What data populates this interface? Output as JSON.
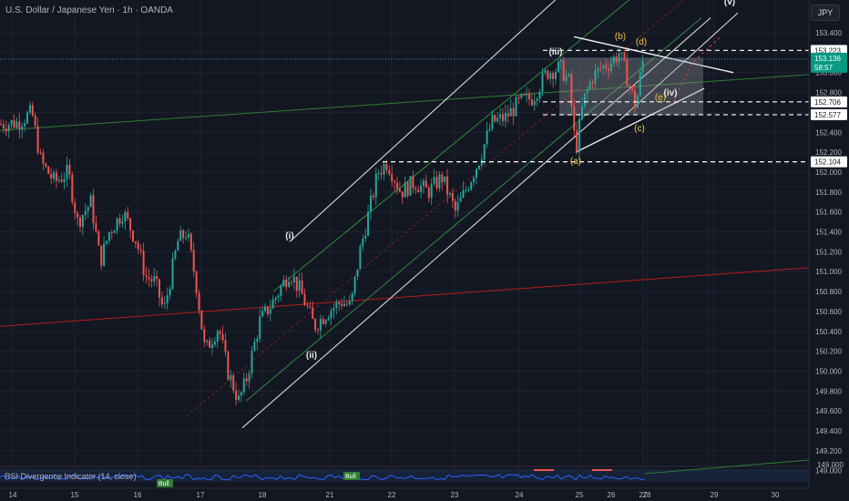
{
  "header": {
    "title": "U.S. Dollar / Japanese Yen · 1h · OANDA",
    "currency": "JPY"
  },
  "rsi": {
    "label": "RSI Divergence Indicator (14, close)",
    "bull_badges": [
      "Bull",
      "Bull"
    ]
  },
  "colors": {
    "background": "#131722",
    "grid": "#1f2330",
    "up": "#26a69a",
    "down": "#ef5350",
    "green_line": "#2e7d32",
    "red_line": "#b71c1c",
    "wave_label": "#e6e6e6",
    "abc_label": "#f5c542",
    "rsi_line": "#2962ff"
  },
  "chart_data": {
    "type": "candlestick",
    "ylim": [
      149.2,
      153.5
    ],
    "y_ticks": [
      "153.400",
      "153.200",
      "153.000",
      "152.800",
      "152.600",
      "152.400",
      "152.200",
      "152.000",
      "151.800",
      "151.600",
      "151.400",
      "151.200",
      "151.000",
      "150.800",
      "150.600",
      "150.400",
      "150.200",
      "150.000",
      "149.800",
      "149.600",
      "149.400",
      "149.200",
      "149.000"
    ],
    "x_ticks": [
      "14",
      "15",
      "16",
      "17",
      "18",
      "21",
      "22",
      "23",
      "24",
      "25",
      "26",
      "27",
      "28",
      "29",
      "30"
    ],
    "current_price": {
      "value": "153.136",
      "countdown": "58:57"
    },
    "levels": [
      {
        "value": 153.223,
        "label": "153.223"
      },
      {
        "value": 152.706,
        "label": "152.706"
      },
      {
        "value": 152.577,
        "label": "152.577"
      },
      {
        "value": 152.104,
        "label": "152.104"
      }
    ],
    "wave_labels": [
      {
        "text": "(i)",
        "x": 17.8,
        "y": 151.35
      },
      {
        "text": "(ii)",
        "x": 18.35,
        "y": 150.05
      },
      {
        "text": "(iii)",
        "x": 25.7,
        "y": 153.12
      },
      {
        "text": "(iv)",
        "x": 27.35,
        "y": 152.75
      },
      {
        "text": "(v)",
        "x": 28.45,
        "y": 153.53
      }
    ],
    "abc_labels": [
      {
        "text": "(a)",
        "x": 25.75,
        "y": 152.09
      },
      {
        "text": "(b)",
        "x": 26.55,
        "y": 153.33
      },
      {
        "text": "(c)",
        "x": 27.05,
        "y": 152.42
      },
      {
        "text": "(d)",
        "x": 26.85,
        "y": 153.28
      },
      {
        "text": "(e)",
        "x": 27.25,
        "y": 152.74
      }
    ]
  }
}
